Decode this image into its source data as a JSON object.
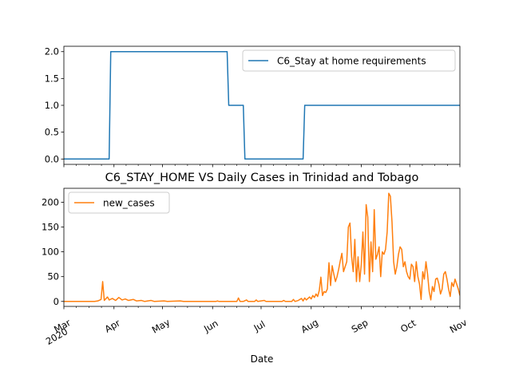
{
  "chart_data": [
    {
      "type": "line",
      "title": "",
      "x_type": "date",
      "xlim": [
        "2020-03-01",
        "2020-11-01"
      ],
      "ylim": [
        -0.1,
        2.1
      ],
      "yticks": [
        0.0,
        0.5,
        1.0,
        1.5,
        2.0
      ],
      "ytick_labels": [
        "0.0",
        "0.5",
        "1.0",
        "1.5",
        "2.0"
      ],
      "legend_position": "top-right",
      "grid": false,
      "series": [
        {
          "name": "C6_Stay at home requirements",
          "color": "#1f77b4",
          "points": [
            [
              "2020-03-01",
              0
            ],
            [
              "2020-03-29",
              0
            ],
            [
              "2020-03-30",
              2
            ],
            [
              "2020-06-10",
              2
            ],
            [
              "2020-06-11",
              1
            ],
            [
              "2020-06-20",
              1
            ],
            [
              "2020-06-21",
              0
            ],
            [
              "2020-07-27",
              0
            ],
            [
              "2020-07-28",
              1
            ],
            [
              "2020-11-01",
              1
            ]
          ]
        }
      ]
    },
    {
      "type": "line",
      "title": "C6_STAY_HOME VS Daily Cases in Trinidad and Tobago",
      "xlabel": "Date",
      "x_type": "date",
      "xlim": [
        "2020-03-01",
        "2020-11-01"
      ],
      "ylim": [
        -10,
        228
      ],
      "yticks": [
        0,
        50,
        100,
        150,
        200
      ],
      "ytick_labels": [
        "0",
        "50",
        "100",
        "150",
        "200"
      ],
      "xticks": [
        {
          "date": "2020-03-01",
          "label": "Mar",
          "sublabel": "2020"
        },
        {
          "date": "2020-04-01",
          "label": "Apr"
        },
        {
          "date": "2020-05-01",
          "label": "May"
        },
        {
          "date": "2020-06-01",
          "label": "Jun"
        },
        {
          "date": "2020-07-01",
          "label": "Jul"
        },
        {
          "date": "2020-08-01",
          "label": "Aug"
        },
        {
          "date": "2020-09-01",
          "label": "Sep"
        },
        {
          "date": "2020-10-01",
          "label": "Oct"
        },
        {
          "date": "2020-11-01",
          "label": "Nov"
        }
      ],
      "legend_position": "top-left",
      "grid": false,
      "series": [
        {
          "name": "new_cases",
          "color": "#ff7f0e",
          "points": [
            [
              "2020-03-01",
              0
            ],
            [
              "2020-03-20",
              0
            ],
            [
              "2020-03-22",
              1
            ],
            [
              "2020-03-24",
              4
            ],
            [
              "2020-03-25",
              40
            ],
            [
              "2020-03-26",
              2
            ],
            [
              "2020-03-28",
              9
            ],
            [
              "2020-03-29",
              3
            ],
            [
              "2020-03-31",
              6
            ],
            [
              "2020-04-02",
              2
            ],
            [
              "2020-04-04",
              8
            ],
            [
              "2020-04-06",
              3
            ],
            [
              "2020-04-08",
              5
            ],
            [
              "2020-04-10",
              2
            ],
            [
              "2020-04-13",
              4
            ],
            [
              "2020-04-15",
              1
            ],
            [
              "2020-04-18",
              2
            ],
            [
              "2020-04-20",
              0
            ],
            [
              "2020-04-24",
              2
            ],
            [
              "2020-04-26",
              0
            ],
            [
              "2020-05-02",
              1
            ],
            [
              "2020-05-04",
              0
            ],
            [
              "2020-05-12",
              1
            ],
            [
              "2020-05-14",
              0
            ],
            [
              "2020-06-03",
              0
            ],
            [
              "2020-06-04",
              1
            ],
            [
              "2020-06-05",
              0
            ],
            [
              "2020-06-16",
              0
            ],
            [
              "2020-06-17",
              7
            ],
            [
              "2020-06-18",
              0
            ],
            [
              "2020-06-20",
              0
            ],
            [
              "2020-06-22",
              3
            ],
            [
              "2020-06-23",
              0
            ],
            [
              "2020-06-27",
              0
            ],
            [
              "2020-06-28",
              3
            ],
            [
              "2020-06-29",
              0
            ],
            [
              "2020-07-03",
              2
            ],
            [
              "2020-07-04",
              0
            ],
            [
              "2020-07-14",
              0
            ],
            [
              "2020-07-15",
              2
            ],
            [
              "2020-07-16",
              0
            ],
            [
              "2020-07-20",
              0
            ],
            [
              "2020-07-21",
              4
            ],
            [
              "2020-07-22",
              0
            ],
            [
              "2020-07-24",
              2
            ],
            [
              "2020-07-26",
              6
            ],
            [
              "2020-07-27",
              1
            ],
            [
              "2020-07-28",
              7
            ],
            [
              "2020-07-29",
              3
            ],
            [
              "2020-07-31",
              9
            ],
            [
              "2020-08-01",
              5
            ],
            [
              "2020-08-02",
              12
            ],
            [
              "2020-08-03",
              8
            ],
            [
              "2020-08-04",
              15
            ],
            [
              "2020-08-05",
              10
            ],
            [
              "2020-08-06",
              22
            ],
            [
              "2020-08-07",
              49
            ],
            [
              "2020-08-08",
              12
            ],
            [
              "2020-08-09",
              20
            ],
            [
              "2020-08-10",
              18
            ],
            [
              "2020-08-11",
              25
            ],
            [
              "2020-08-12",
              78
            ],
            [
              "2020-08-13",
              32
            ],
            [
              "2020-08-14",
              72
            ],
            [
              "2020-08-15",
              55
            ],
            [
              "2020-08-16",
              40
            ],
            [
              "2020-08-17",
              50
            ],
            [
              "2020-08-18",
              65
            ],
            [
              "2020-08-19",
              82
            ],
            [
              "2020-08-20",
              97
            ],
            [
              "2020-08-21",
              60
            ],
            [
              "2020-08-22",
              70
            ],
            [
              "2020-08-23",
              80
            ],
            [
              "2020-08-24",
              150
            ],
            [
              "2020-08-25",
              158
            ],
            [
              "2020-08-26",
              90
            ],
            [
              "2020-08-27",
              60
            ],
            [
              "2020-08-28",
              125
            ],
            [
              "2020-08-29",
              40
            ],
            [
              "2020-08-30",
              90
            ],
            [
              "2020-08-31",
              40
            ],
            [
              "2020-09-01",
              75
            ],
            [
              "2020-09-02",
              140
            ],
            [
              "2020-09-03",
              55
            ],
            [
              "2020-09-04",
              195
            ],
            [
              "2020-09-05",
              170
            ],
            [
              "2020-09-06",
              40
            ],
            [
              "2020-09-07",
              120
            ],
            [
              "2020-09-08",
              60
            ],
            [
              "2020-09-09",
              185
            ],
            [
              "2020-09-10",
              85
            ],
            [
              "2020-09-11",
              95
            ],
            [
              "2020-09-12",
              110
            ],
            [
              "2020-09-13",
              50
            ],
            [
              "2020-09-14",
              100
            ],
            [
              "2020-09-15",
              95
            ],
            [
              "2020-09-16",
              105
            ],
            [
              "2020-09-17",
              140
            ],
            [
              "2020-09-18",
              218
            ],
            [
              "2020-09-19",
              212
            ],
            [
              "2020-09-20",
              160
            ],
            [
              "2020-09-21",
              80
            ],
            [
              "2020-09-22",
              55
            ],
            [
              "2020-09-23",
              70
            ],
            [
              "2020-09-24",
              95
            ],
            [
              "2020-09-25",
              110
            ],
            [
              "2020-09-26",
              105
            ],
            [
              "2020-09-27",
              70
            ],
            [
              "2020-09-28",
              80
            ],
            [
              "2020-09-29",
              60
            ],
            [
              "2020-09-30",
              50
            ],
            [
              "2020-10-01",
              45
            ],
            [
              "2020-10-02",
              75
            ],
            [
              "2020-10-03",
              70
            ],
            [
              "2020-10-04",
              40
            ],
            [
              "2020-10-05",
              80
            ],
            [
              "2020-10-06",
              50
            ],
            [
              "2020-10-07",
              35
            ],
            [
              "2020-10-08",
              4
            ],
            [
              "2020-10-09",
              60
            ],
            [
              "2020-10-10",
              45
            ],
            [
              "2020-10-11",
              80
            ],
            [
              "2020-10-12",
              55
            ],
            [
              "2020-10-13",
              20
            ],
            [
              "2020-10-14",
              3
            ],
            [
              "2020-10-15",
              30
            ],
            [
              "2020-10-16",
              20
            ],
            [
              "2020-10-17",
              45
            ],
            [
              "2020-10-18",
              47
            ],
            [
              "2020-10-19",
              35
            ],
            [
              "2020-10-20",
              15
            ],
            [
              "2020-10-21",
              25
            ],
            [
              "2020-10-22",
              55
            ],
            [
              "2020-10-23",
              60
            ],
            [
              "2020-10-24",
              45
            ],
            [
              "2020-10-25",
              25
            ],
            [
              "2020-10-26",
              10
            ],
            [
              "2020-10-27",
              38
            ],
            [
              "2020-10-28",
              30
            ],
            [
              "2020-10-29",
              45
            ],
            [
              "2020-10-30",
              35
            ],
            [
              "2020-10-31",
              25
            ],
            [
              "2020-11-01",
              12
            ]
          ]
        }
      ]
    }
  ]
}
